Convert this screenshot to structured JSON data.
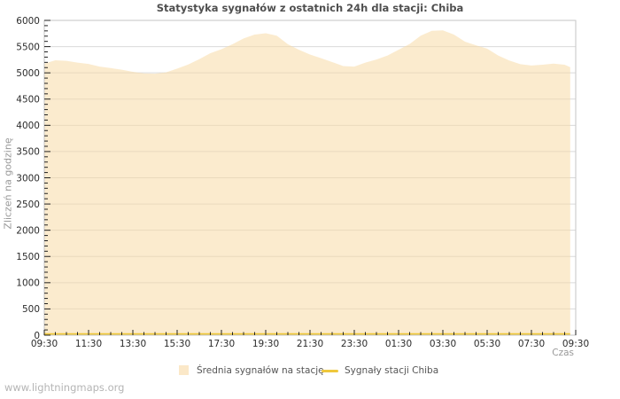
{
  "page": {
    "watermark": "www.lightningmaps.org"
  },
  "colors": {
    "area_fill": "#f8dba6",
    "area_fill_opacity": 0.55,
    "legend_area_swatch": "#fbe8c8",
    "station_line": "#efc83c",
    "grid_line": "#dadada",
    "plot_border": "#c6c6c6",
    "tick": "#222222",
    "axis_text": "#2b2b2b",
    "title_text": "#4f4f4f",
    "muted_text": "#999999"
  },
  "chart_data": {
    "type": "area",
    "title": "Statystyka sygnałów z ostatnich 24h dla stacji: Chiba",
    "xlabel": "Czas",
    "ylabel": "Zliczeń na godzinę",
    "ylim": [
      0,
      6000
    ],
    "y_tick_step": 500,
    "y_minor_tick_step": 100,
    "x_minor_tick_minutes": 30,
    "grid": "horizontal-only",
    "legend_position": "bottom",
    "x_tick_labels": [
      "09:30",
      "11:30",
      "13:30",
      "15:30",
      "17:30",
      "19:30",
      "21:30",
      "23:30",
      "01:30",
      "03:30",
      "05:30",
      "07:30",
      "09:30"
    ],
    "series": [
      {
        "name": "Średnia sygnałów na stację",
        "type": "area",
        "times": [
          "09:30",
          "10:00",
          "10:30",
          "11:00",
          "11:30",
          "12:00",
          "12:30",
          "13:00",
          "13:30",
          "14:00",
          "14:30",
          "15:00",
          "15:30",
          "16:00",
          "16:30",
          "17:00",
          "17:30",
          "18:00",
          "18:30",
          "19:00",
          "19:30",
          "20:00",
          "20:30",
          "21:00",
          "21:30",
          "22:00",
          "22:30",
          "23:00",
          "23:30",
          "00:00",
          "00:30",
          "01:00",
          "01:30",
          "02:00",
          "02:30",
          "03:00",
          "03:30",
          "04:00",
          "04:30",
          "05:00",
          "05:30",
          "06:00",
          "06:30",
          "07:00",
          "07:30",
          "08:00",
          "08:30",
          "09:00",
          "09:15"
        ],
        "values": [
          5175,
          5240,
          5230,
          5195,
          5170,
          5120,
          5090,
          5060,
          5020,
          4990,
          4985,
          5010,
          5080,
          5160,
          5260,
          5375,
          5450,
          5545,
          5655,
          5730,
          5755,
          5710,
          5545,
          5440,
          5350,
          5280,
          5205,
          5130,
          5120,
          5195,
          5255,
          5330,
          5440,
          5550,
          5710,
          5800,
          5810,
          5730,
          5595,
          5525,
          5460,
          5330,
          5235,
          5165,
          5140,
          5155,
          5175,
          5155,
          5110
        ]
      },
      {
        "name": "Sygnały stacji Chiba",
        "type": "line",
        "constant_value": 0
      }
    ]
  }
}
